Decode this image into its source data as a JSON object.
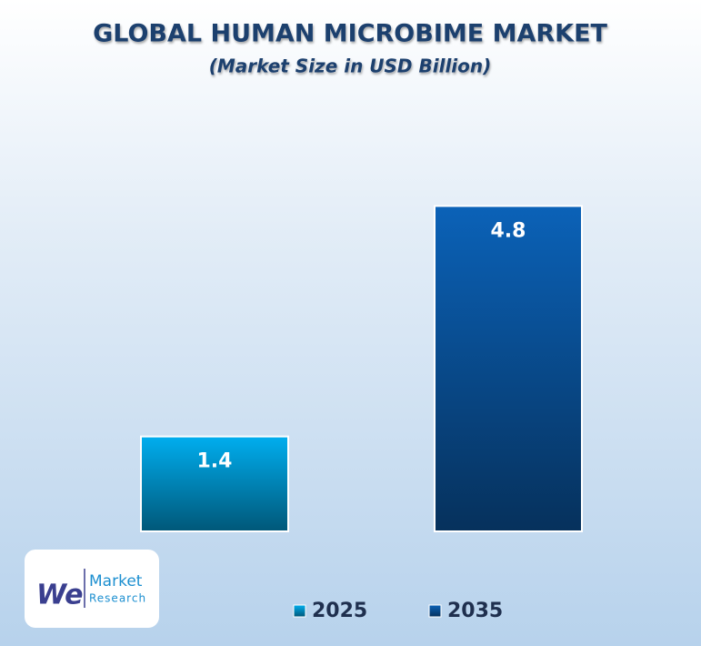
{
  "chart_data": {
    "type": "bar",
    "title": "GLOBAL HUMAN MICROBIME MARKET",
    "subtitle": "(Market Size in USD Billion)",
    "categories": [
      "2025",
      "2035"
    ],
    "values": [
      1.4,
      4.8
    ],
    "colors": [
      "#00aeef",
      "#0b62b8"
    ],
    "legend": "bottom"
  },
  "logo": {
    "mark": "We",
    "name": "Market",
    "sub": "Research"
  }
}
